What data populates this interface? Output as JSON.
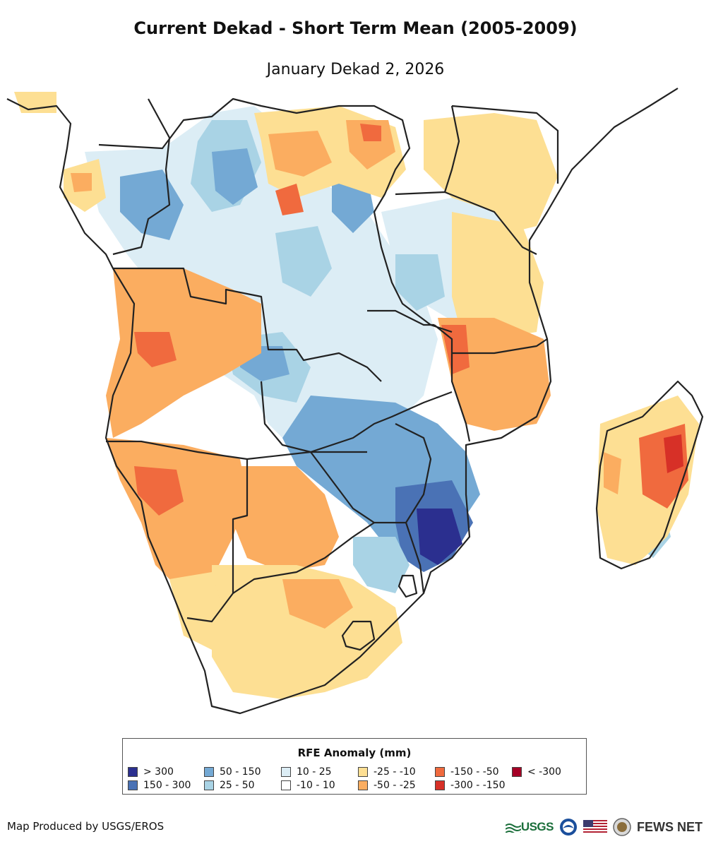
{
  "title": "Current Dekad - Short Term Mean (2005-2009)",
  "subtitle": "January Dekad 2, 2026",
  "legend": {
    "title": "RFE Anomaly (mm)",
    "items": [
      {
        "label": "> 300",
        "color": "#2b2f8f"
      },
      {
        "label": "150 - 300",
        "color": "#4a72b5"
      },
      {
        "label": "50 - 150",
        "color": "#74a9d4"
      },
      {
        "label": "25 - 50",
        "color": "#a9d3e5"
      },
      {
        "label": "10 - 25",
        "color": "#dcedf5"
      },
      {
        "label": "-10 - 10",
        "color": "#ffffff"
      },
      {
        "label": "-25 - -10",
        "color": "#fddf93"
      },
      {
        "label": "-50 - -25",
        "color": "#fbad60"
      },
      {
        "label": "-150 - -50",
        "color": "#f06a3e"
      },
      {
        "label": "-300 - -150",
        "color": "#d73027"
      },
      {
        "label": "< -300",
        "color": "#a50026"
      }
    ]
  },
  "credit": "Map Produced by USGS/EROS",
  "logos": {
    "usgs": "USGS",
    "fewsnet": "FEWS NET"
  }
}
